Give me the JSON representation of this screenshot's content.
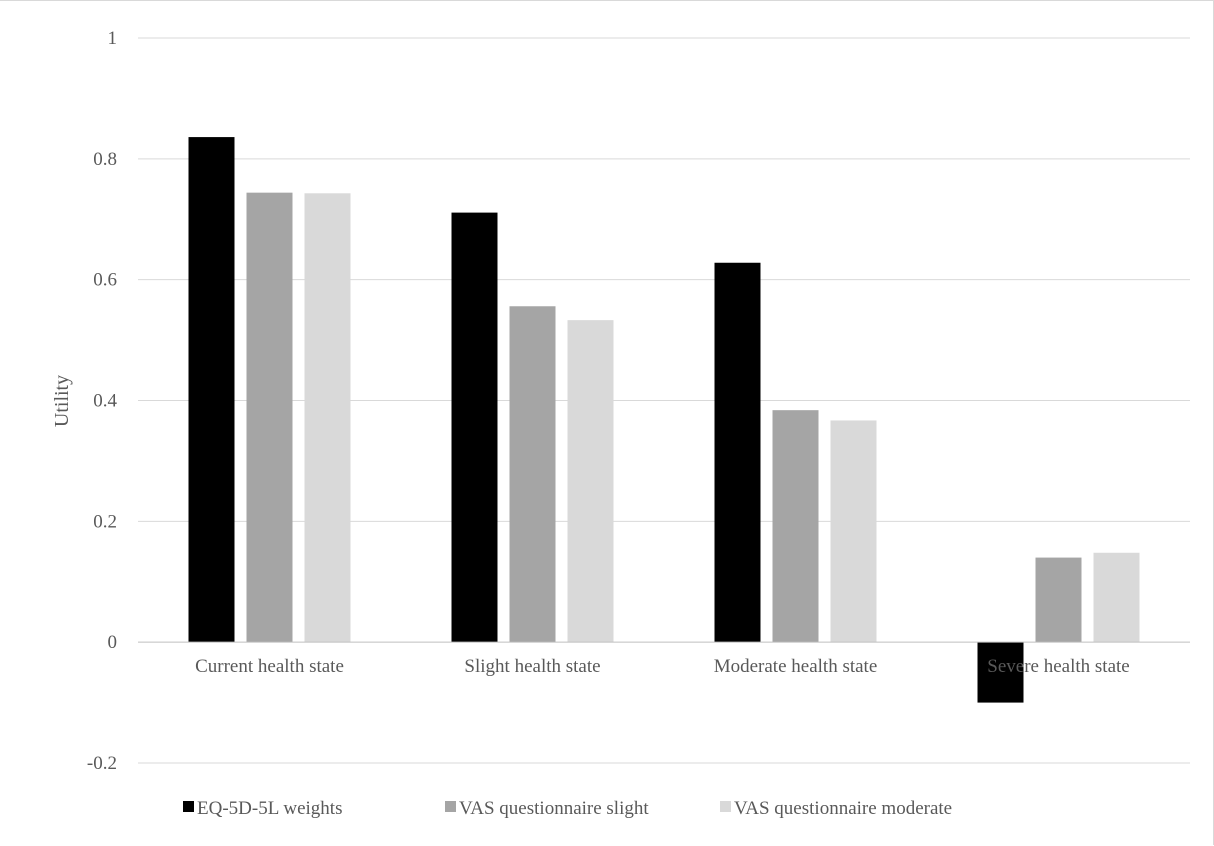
{
  "chart_data": {
    "type": "bar",
    "title": "",
    "xlabel": "",
    "ylabel": "Utility",
    "ylim": [
      -0.2,
      1
    ],
    "yticks": [
      {
        "value": -0.2,
        "label": "-0.2"
      },
      {
        "value": 0,
        "label": "0"
      },
      {
        "value": 0.2,
        "label": "0.2"
      },
      {
        "value": 0.4,
        "label": "0.4"
      },
      {
        "value": 0.6,
        "label": "0.6"
      },
      {
        "value": 0.8,
        "label": "0.8"
      },
      {
        "value": 1,
        "label": "1"
      }
    ],
    "grid": true,
    "legend_position": "bottom",
    "categories": [
      "Current health state",
      "Slight health state",
      "Moderate health state",
      "Severe health state"
    ],
    "series": [
      {
        "name": "EQ-5D-5L weights",
        "color": "#000000",
        "values": [
          0.836,
          0.711,
          0.628,
          -0.1
        ]
      },
      {
        "name": "VAS questionnaire slight",
        "color": "#a5a5a5",
        "values": [
          0.744,
          0.556,
          0.384,
          0.14
        ]
      },
      {
        "name": "VAS questionnaire moderate",
        "color": "#d9d9d9",
        "values": [
          0.743,
          0.533,
          0.367,
          0.148
        ]
      }
    ]
  }
}
